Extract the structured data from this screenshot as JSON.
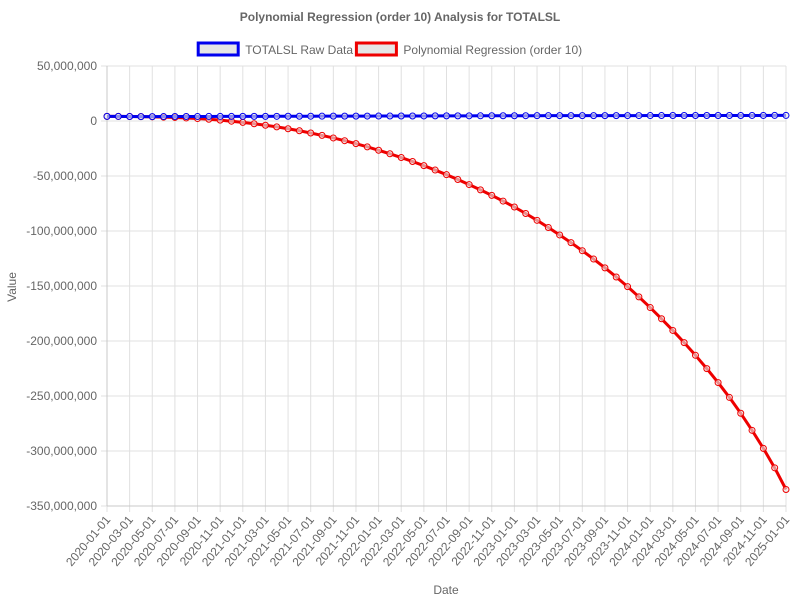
{
  "chart_data": {
    "type": "line",
    "title": "Polynomial Regression (order 10) Analysis for TOTALSL",
    "xlabel": "Date",
    "ylabel": "Value",
    "ylim": [
      -350000000,
      50000000
    ],
    "yticks": [
      50000000,
      0,
      -50000000,
      -100000000,
      -150000000,
      -200000000,
      -250000000,
      -300000000,
      -350000000
    ],
    "ytick_labels": [
      "50,000,000",
      "0",
      "-50,000,000",
      "-100,000,000",
      "-150,000,000",
      "-200,000,000",
      "-250,000,000",
      "-300,000,000",
      "-350,000,000"
    ],
    "grid": true,
    "legend_position": "top-center",
    "x": [
      "2020-01-01",
      "2020-02-01",
      "2020-03-01",
      "2020-04-01",
      "2020-05-01",
      "2020-06-01",
      "2020-07-01",
      "2020-08-01",
      "2020-09-01",
      "2020-10-01",
      "2020-11-01",
      "2020-12-01",
      "2021-01-01",
      "2021-02-01",
      "2021-03-01",
      "2021-04-01",
      "2021-05-01",
      "2021-06-01",
      "2021-07-01",
      "2021-08-01",
      "2021-09-01",
      "2021-10-01",
      "2021-11-01",
      "2021-12-01",
      "2022-01-01",
      "2022-02-01",
      "2022-03-01",
      "2022-04-01",
      "2022-05-01",
      "2022-06-01",
      "2022-07-01",
      "2022-08-01",
      "2022-09-01",
      "2022-10-01",
      "2022-11-01",
      "2022-12-01",
      "2023-01-01",
      "2023-02-01",
      "2023-03-01",
      "2023-04-01",
      "2023-05-01",
      "2023-06-01",
      "2023-07-01",
      "2023-08-01",
      "2023-09-01",
      "2023-10-01",
      "2023-11-01",
      "2023-12-01",
      "2024-01-01",
      "2024-02-01",
      "2024-03-01",
      "2024-04-01",
      "2024-05-01",
      "2024-06-01",
      "2024-07-01",
      "2024-08-01",
      "2024-09-01",
      "2024-10-01",
      "2024-11-01",
      "2024-12-01",
      "2025-01-01"
    ],
    "x_tick_labels": [
      "2020-01-01",
      "2020-03-01",
      "2020-05-01",
      "2020-07-01",
      "2020-09-01",
      "2020-11-01",
      "2021-01-01",
      "2021-03-01",
      "2021-05-01",
      "2021-07-01",
      "2021-09-01",
      "2021-11-01",
      "2022-01-01",
      "2022-03-01",
      "2022-05-01",
      "2022-07-01",
      "2022-09-01",
      "2022-11-01",
      "2023-01-01",
      "2023-03-01",
      "2023-05-01",
      "2023-07-01",
      "2023-09-01",
      "2023-11-01",
      "2024-01-01",
      "2024-03-01",
      "2024-05-01",
      "2024-07-01",
      "2024-09-01",
      "2024-11-01",
      "2025-01-01"
    ],
    "series": [
      {
        "name": "TOTALSL Raw Data",
        "color": "#0000ee",
        "values": [
          4190000,
          4160000,
          4100000,
          3990000,
          4000000,
          4050000,
          4090000,
          4120000,
          4140000,
          4150000,
          4160000,
          4170000,
          4180000,
          4200000,
          4220000,
          4260000,
          4300000,
          4330000,
          4360000,
          4390000,
          4410000,
          4430000,
          4450000,
          4470000,
          4490000,
          4510000,
          4540000,
          4570000,
          4600000,
          4630000,
          4660000,
          4690000,
          4710000,
          4730000,
          4750000,
          4770000,
          4790000,
          4810000,
          4830000,
          4850000,
          4870000,
          4880000,
          4890000,
          4900000,
          4910000,
          4920000,
          4930000,
          4940000,
          4950000,
          4960000,
          4970000,
          4980000,
          4990000,
          5000000,
          5010000,
          5020000,
          5030000,
          5040000,
          5050000,
          5060000,
          5070000
        ]
      },
      {
        "name": "Polynomial Regression (order 10)",
        "color": "#ee0000",
        "values": [
          4200000,
          4170000,
          4100000,
          3980000,
          3800000,
          3550000,
          3220000,
          2780000,
          2230000,
          1560000,
          760000,
          -180000,
          -1260000,
          -2480000,
          -3850000,
          -5370000,
          -7050000,
          -8890000,
          -10900000,
          -13100000,
          -15400000,
          -17900000,
          -20600000,
          -23500000,
          -26600000,
          -29800000,
          -33200000,
          -36800000,
          -40600000,
          -44600000,
          -48800000,
          -53200000,
          -57800000,
          -62600000,
          -67600000,
          -72800000,
          -78200000,
          -84100000,
          -90300000,
          -96800000,
          -103600000,
          -110600000,
          -117900000,
          -125500000,
          -133500000,
          -141800000,
          -150600000,
          -159900000,
          -169600000,
          -179800000,
          -190400000,
          -201500000,
          -213000000,
          -225100000,
          -237800000,
          -251300000,
          -265700000,
          -281200000,
          -297600000,
          -315300000,
          -335000000
        ]
      }
    ]
  }
}
